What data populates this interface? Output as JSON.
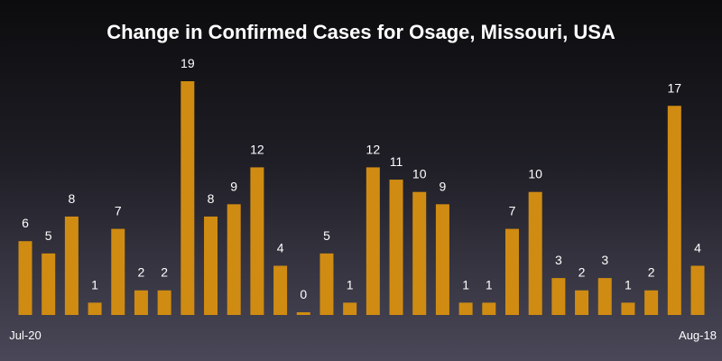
{
  "chart_data": {
    "type": "bar",
    "title": "Change in Confirmed Cases for Osage, Missouri, USA",
    "x_start_label": "Jul-20",
    "x_end_label": "Aug-18",
    "values": [
      6,
      5,
      8,
      1,
      7,
      2,
      2,
      19,
      8,
      9,
      12,
      4,
      0,
      5,
      1,
      12,
      11,
      10,
      9,
      1,
      1,
      7,
      10,
      3,
      2,
      3,
      1,
      2,
      17,
      4
    ],
    "bar_color": "#d08c12",
    "xlabel": "",
    "ylabel": "",
    "ylim": [
      0,
      19
    ],
    "grid": false,
    "legend": "none"
  }
}
